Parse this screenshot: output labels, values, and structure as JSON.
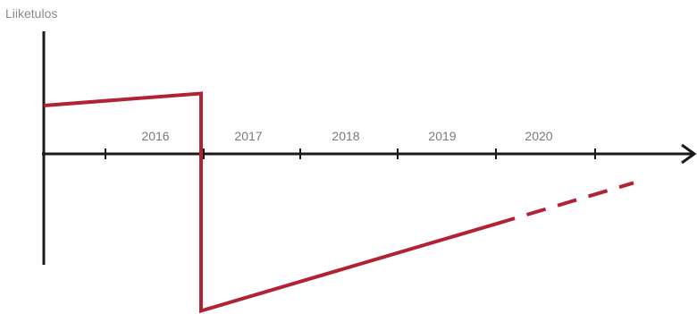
{
  "chart_data": {
    "type": "line",
    "title": "",
    "ylabel": "Liiketulos",
    "xlabel": "",
    "categories": [
      "2016",
      "2017",
      "2018",
      "2019",
      "2020"
    ],
    "grid": false,
    "legend": "none",
    "line_color": "#b22234",
    "axis_color": "#1a1a1a",
    "series": [
      {
        "style": "solid",
        "points": [
          {
            "x": 2015.0,
            "y": 0.4
          },
          {
            "x": 2016.6,
            "y": 0.5
          },
          {
            "x": 2016.6,
            "y": -1.3
          },
          {
            "x": 2019.6,
            "y": -0.58
          }
        ]
      },
      {
        "style": "dashed",
        "points": [
          {
            "x": 2019.6,
            "y": -0.58
          },
          {
            "x": 2021.0,
            "y": -0.24
          }
        ]
      }
    ]
  }
}
